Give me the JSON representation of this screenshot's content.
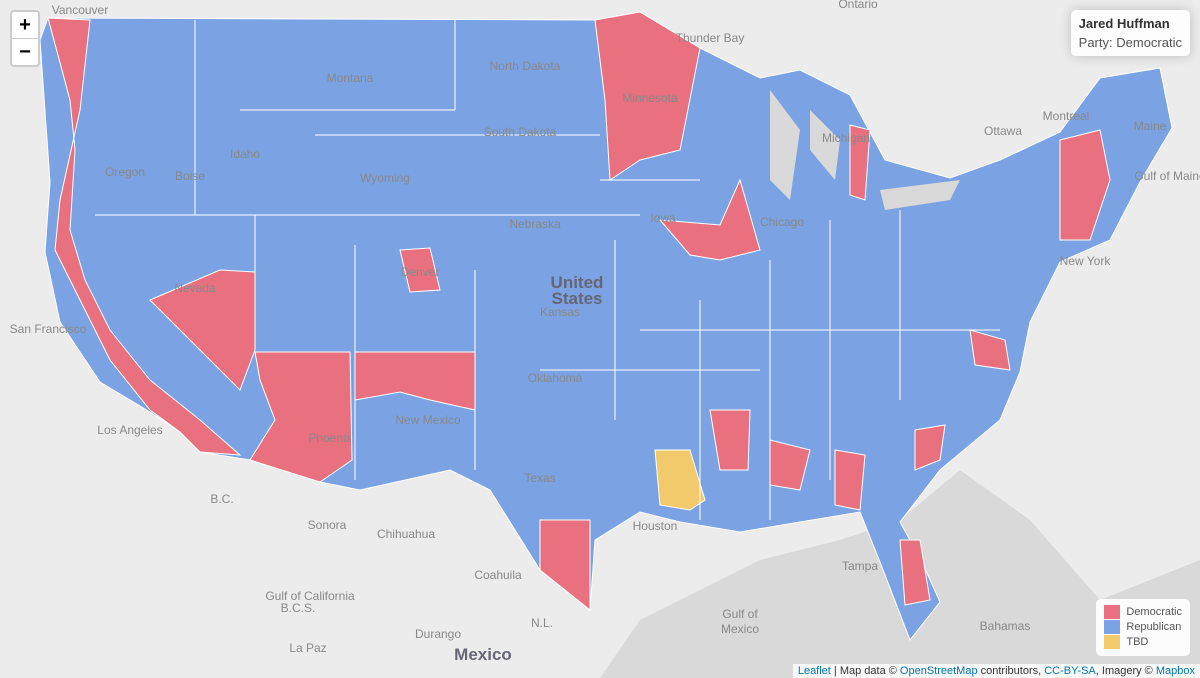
{
  "controls": {
    "zoom_in": "+",
    "zoom_out": "−"
  },
  "info": {
    "name": "Jared Huffman",
    "party_label": "Party:",
    "party": "Democratic"
  },
  "legend": [
    {
      "label": "Democratic",
      "color": "#e8707f"
    },
    {
      "label": "Republican",
      "color": "#7ba3e3"
    },
    {
      "label": "TBD",
      "color": "#f2c96b"
    }
  ],
  "attribution": {
    "leaflet": "Leaflet",
    "map_data": " | Map data © ",
    "osm": "OpenStreetMap",
    "contributors": " contributors, ",
    "license": "CC-BY-SA",
    "imagery": ", Imagery © ",
    "mapbox": "Mapbox"
  },
  "place_labels": [
    "Vancouver",
    "Ontario",
    "Thunder Bay",
    "Montana",
    "North Dakota",
    "Minnesota",
    "South Dakota",
    "Oregon",
    "Boise",
    "Idaho",
    "Wyoming",
    "Nebraska",
    "Iowa",
    "Nevada",
    "Denver",
    "United",
    "States",
    "Kansas",
    "San Francisco",
    "Oklahoma",
    "New Mexico",
    "Los Angeles",
    "Phoenix",
    "Texas",
    "Houston",
    "Chicago",
    "Michigan",
    "Ottawa",
    "Montreal",
    "Maine",
    "Gulf of Maine",
    "New York",
    "B.C.",
    "Sonora",
    "Chihuahua",
    "Coahuila",
    "Gulf of California",
    "B.C.S.",
    "N.L.",
    "Durango",
    "La Paz",
    "Mexico",
    "Tampa",
    "Gulf of",
    "Mexico",
    "Bahamas"
  ]
}
